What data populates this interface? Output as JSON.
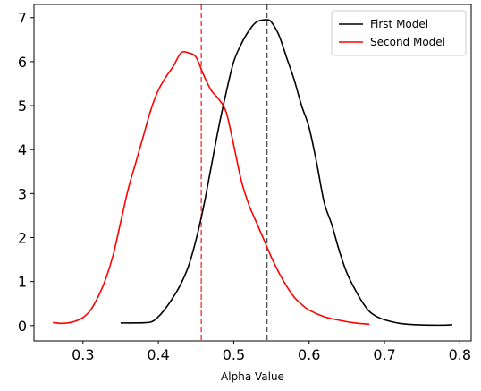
{
  "chart_data": {
    "type": "line",
    "title": "",
    "xlabel": "Alpha Value",
    "ylabel": "",
    "xlim": [
      0.235,
      0.815
    ],
    "ylim": [
      -0.35,
      7.3
    ],
    "xticks": [
      0.3,
      0.4,
      0.5,
      0.6,
      0.7,
      0.8
    ],
    "xtick_labels": [
      "0.3",
      "0.4",
      "0.5",
      "0.6",
      "0.7",
      "0.8"
    ],
    "yticks": [
      0,
      1,
      2,
      3,
      4,
      5,
      6,
      7
    ],
    "ytick_labels": [
      "0",
      "1",
      "2",
      "3",
      "4",
      "5",
      "6",
      "7"
    ],
    "grid": false,
    "legend_position": "top-right",
    "series": [
      {
        "name": "First Model",
        "color": "#000000",
        "x": [
          0.35,
          0.37,
          0.39,
          0.4,
          0.41,
          0.42,
          0.43,
          0.44,
          0.45,
          0.46,
          0.47,
          0.48,
          0.49,
          0.5,
          0.51,
          0.52,
          0.53,
          0.54,
          0.545,
          0.55,
          0.56,
          0.57,
          0.58,
          0.59,
          0.6,
          0.61,
          0.62,
          0.63,
          0.64,
          0.65,
          0.66,
          0.67,
          0.68,
          0.69,
          0.7,
          0.72,
          0.74,
          0.76,
          0.78,
          0.79
        ],
        "y": [
          0.06,
          0.06,
          0.08,
          0.2,
          0.4,
          0.65,
          0.95,
          1.35,
          1.95,
          2.7,
          3.6,
          4.5,
          5.3,
          6.0,
          6.4,
          6.7,
          6.9,
          6.95,
          6.95,
          6.9,
          6.6,
          6.1,
          5.6,
          5.0,
          4.5,
          3.7,
          2.8,
          2.3,
          1.7,
          1.2,
          0.85,
          0.55,
          0.32,
          0.2,
          0.13,
          0.05,
          0.02,
          0.01,
          0.01,
          0.02
        ]
      },
      {
        "name": "Second Model",
        "color": "#ff0000",
        "x": [
          0.26,
          0.27,
          0.28,
          0.29,
          0.3,
          0.31,
          0.32,
          0.33,
          0.34,
          0.35,
          0.36,
          0.37,
          0.38,
          0.39,
          0.4,
          0.41,
          0.42,
          0.43,
          0.44,
          0.45,
          0.46,
          0.47,
          0.48,
          0.49,
          0.5,
          0.51,
          0.52,
          0.53,
          0.54,
          0.55,
          0.56,
          0.57,
          0.58,
          0.59,
          0.6,
          0.62,
          0.64,
          0.66,
          0.68
        ],
        "y": [
          0.07,
          0.05,
          0.06,
          0.1,
          0.18,
          0.35,
          0.65,
          1.05,
          1.6,
          2.35,
          3.1,
          3.7,
          4.3,
          4.9,
          5.35,
          5.65,
          5.9,
          6.2,
          6.2,
          6.1,
          5.7,
          5.35,
          5.15,
          4.85,
          4.1,
          3.3,
          2.75,
          2.35,
          1.95,
          1.55,
          1.2,
          0.9,
          0.65,
          0.48,
          0.35,
          0.2,
          0.12,
          0.06,
          0.03
        ]
      }
    ],
    "vlines": [
      {
        "x": 0.457,
        "color": "#ff5050",
        "style": "dashed"
      },
      {
        "x": 0.544,
        "color": "#555555",
        "style": "dashed"
      }
    ]
  }
}
